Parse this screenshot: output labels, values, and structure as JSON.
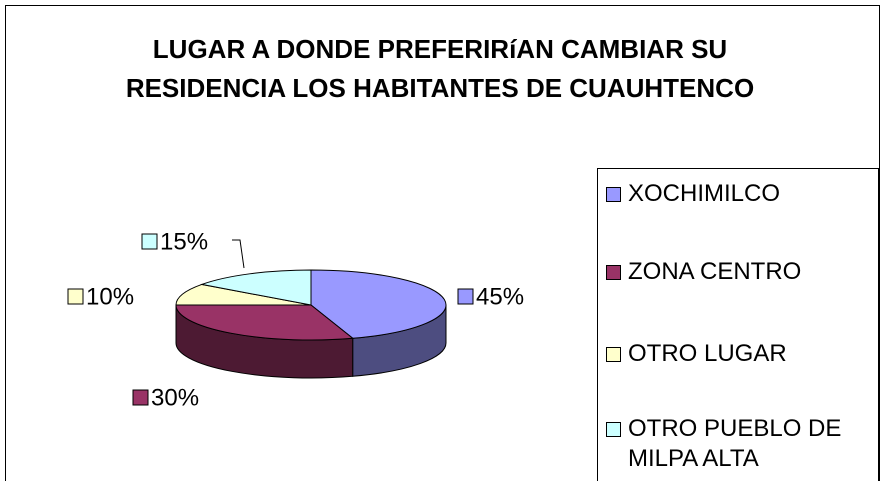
{
  "chart_data": {
    "type": "pie3d",
    "title": "LUGAR A DONDE PREFERIRíAN CAMBIAR SU RESIDENCIA LOS HABITANTES DE CUAUHTENCO",
    "categories": [
      "XOCHIMILCO",
      "ZONA CENTRO",
      "OTRO LUGAR",
      "OTRO PUEBLO DE MILPA ALTA"
    ],
    "values": [
      45,
      30,
      10,
      15
    ],
    "value_labels": [
      "45%",
      "30%",
      "10%",
      "15%"
    ],
    "colors": [
      "#9999ff",
      "#993366",
      "#ffffcc",
      "#ccffff"
    ],
    "legend": "right"
  }
}
